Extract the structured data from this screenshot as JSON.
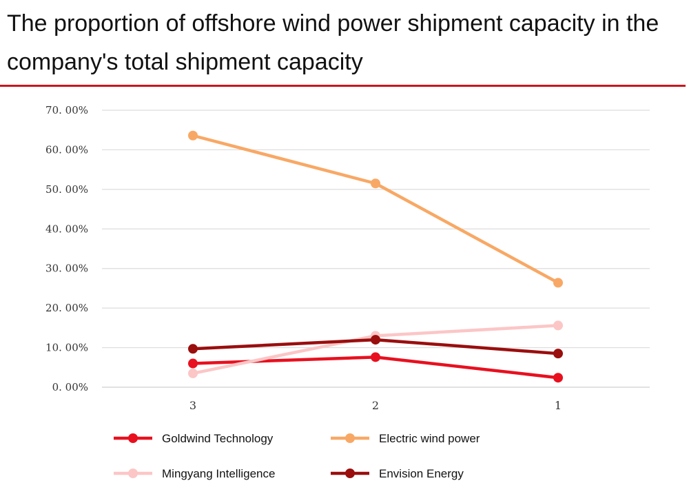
{
  "chart_data": {
    "type": "line",
    "title": "The proportion of offshore wind power shipment capacity in the company's total shipment capacity",
    "categories": [
      "3",
      "2",
      "1"
    ],
    "y_ticks": [
      "0. 00%",
      "10. 00%",
      "20. 00%",
      "30. 00%",
      "40. 00%",
      "50. 00%",
      "60. 00%",
      "70. 00%"
    ],
    "ylim": [
      0,
      70
    ],
    "grid": true,
    "legend_position": "bottom",
    "series": [
      {
        "name": "Goldwind Technology",
        "color": "#e8101f",
        "values": [
          6.0,
          7.6,
          2.4
        ]
      },
      {
        "name": "Electric wind power",
        "color": "#f8a865",
        "values": [
          63.6,
          51.5,
          26.4
        ]
      },
      {
        "name": "Mingyang Intelligence",
        "color": "#fcc6c6",
        "values": [
          3.5,
          13.0,
          15.6
        ]
      },
      {
        "name": "Envision Energy",
        "color": "#9a0e0e",
        "values": [
          9.7,
          12.0,
          8.5
        ]
      }
    ]
  }
}
